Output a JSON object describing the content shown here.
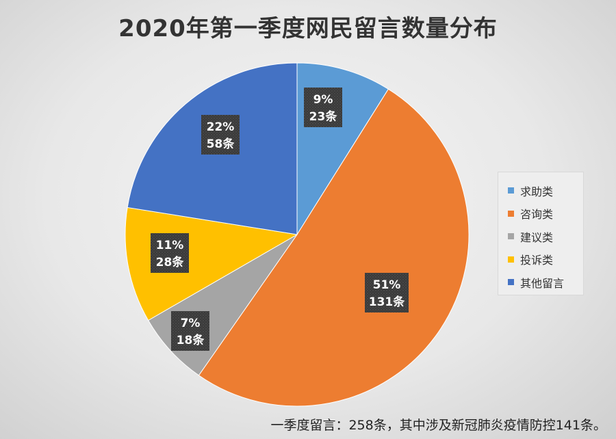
{
  "chart_data": {
    "type": "pie",
    "title": "2020年第一季度网民留言数量分布",
    "unit": "条",
    "slices": [
      {
        "name": "求助类",
        "value": 23,
        "percent": "9%",
        "count_label": "23条",
        "color": "#5b9bd5"
      },
      {
        "name": "咨询类",
        "value": 131,
        "percent": "51%",
        "count_label": "131条",
        "color": "#ed7d31"
      },
      {
        "name": "建议类",
        "value": 18,
        "percent": "7%",
        "count_label": "18条",
        "color": "#a5a5a5"
      },
      {
        "name": "投诉类",
        "value": 28,
        "percent": "11%",
        "count_label": "28条",
        "color": "#ffc000"
      },
      {
        "name": "其他留言",
        "value": 58,
        "percent": "22%",
        "count_label": "58条",
        "color": "#4472c4"
      }
    ],
    "legend_position": "right"
  },
  "footnote": "一季度留言：258条，其中涉及新冠肺炎疫情防控141条。"
}
